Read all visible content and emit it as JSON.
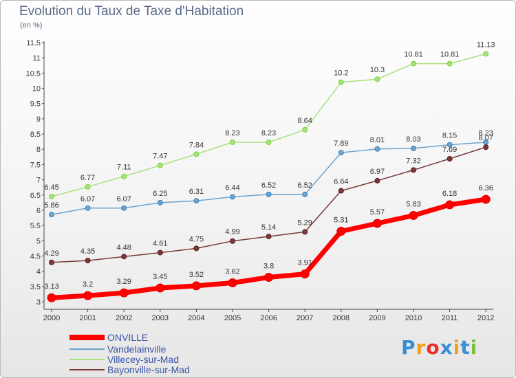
{
  "chart_data": {
    "type": "line",
    "title": "Evolution du Taux de Taxe d'Habitation",
    "unit_label": "(en %)",
    "x": [
      "2000",
      "2001",
      "2002",
      "2003",
      "2004",
      "2005",
      "2006",
      "2007",
      "2008",
      "2009",
      "2010",
      "2011",
      "2012"
    ],
    "ylim": [
      3,
      11.5
    ],
    "yticks": [
      "3",
      "3.5",
      "4",
      "4.5",
      "5",
      "5.5",
      "6",
      "6.5",
      "7",
      "7.5",
      "8",
      "8.5",
      "9",
      "9.5",
      "10",
      "10.5",
      "11",
      "11.5"
    ],
    "grid": false,
    "legend_position": "bottom-left",
    "series": [
      {
        "name": "ONVILLE",
        "color": "#ff0000",
        "marker": "#e00000",
        "width": 7,
        "radius": 6,
        "values": [
          3.13,
          3.2,
          3.29,
          3.45,
          3.52,
          3.62,
          3.8,
          3.91,
          5.31,
          5.57,
          5.83,
          6.18,
          6.36
        ],
        "labels": [
          "3.13",
          "3.2",
          "3.29",
          "3.45",
          "3.52",
          "3.62",
          "3.8",
          "3.91",
          "5.31",
          "5.57",
          "5.83",
          "6.18",
          "6.36"
        ]
      },
      {
        "name": "Vandelainville",
        "color": "#6ea3cc",
        "marker": "#3a84c4",
        "width": 1.5,
        "radius": 3.5,
        "values": [
          5.86,
          6.07,
          6.07,
          6.25,
          6.31,
          6.44,
          6.52,
          6.52,
          7.89,
          8.01,
          8.03,
          8.15,
          8.23
        ],
        "labels": [
          "5.86",
          "6.07",
          "6.07",
          "6.25",
          "6.31",
          "6.44",
          "6.52",
          "6.52",
          "7.89",
          "8.01",
          "8.03",
          "8.15",
          "8.23"
        ]
      },
      {
        "name": "Villecey-sur-Mad",
        "color": "#a8e27a",
        "marker": "#7bd13c",
        "width": 1.5,
        "radius": 3.5,
        "values": [
          6.45,
          6.77,
          7.11,
          7.47,
          7.84,
          8.23,
          8.23,
          8.64,
          10.2,
          10.3,
          10.81,
          10.81,
          11.13
        ],
        "labels": [
          "6.45",
          "6.77",
          "7.11",
          "7.47",
          "7.84",
          "8.23",
          "8.23",
          "8.64",
          "10.2",
          "10.3",
          "10.81",
          "10.81",
          "11.13"
        ]
      },
      {
        "name": "Bayonville-sur-Mad",
        "color": "#7a3a3a",
        "marker": "#5a1a1a",
        "width": 1.5,
        "radius": 3.5,
        "values": [
          4.29,
          4.35,
          4.48,
          4.61,
          4.75,
          4.99,
          5.14,
          5.29,
          6.64,
          6.97,
          7.32,
          7.69,
          8.07
        ],
        "labels": [
          "4.29",
          "4.35",
          "4.48",
          "4.61",
          "4.75",
          "4.99",
          "5.14",
          "5.29",
          "6.64",
          "6.97",
          "7.32",
          "7.69",
          "8.07"
        ]
      }
    ]
  },
  "logo": {
    "letters": [
      "P",
      "r",
      "o",
      "x",
      "i",
      "t",
      "i"
    ],
    "colors": [
      "#3a8fd0",
      "#f0a020",
      "#e8302a",
      "#3a8fd0",
      "#f0a020",
      "#3a8fd0",
      "#7bc043"
    ]
  }
}
